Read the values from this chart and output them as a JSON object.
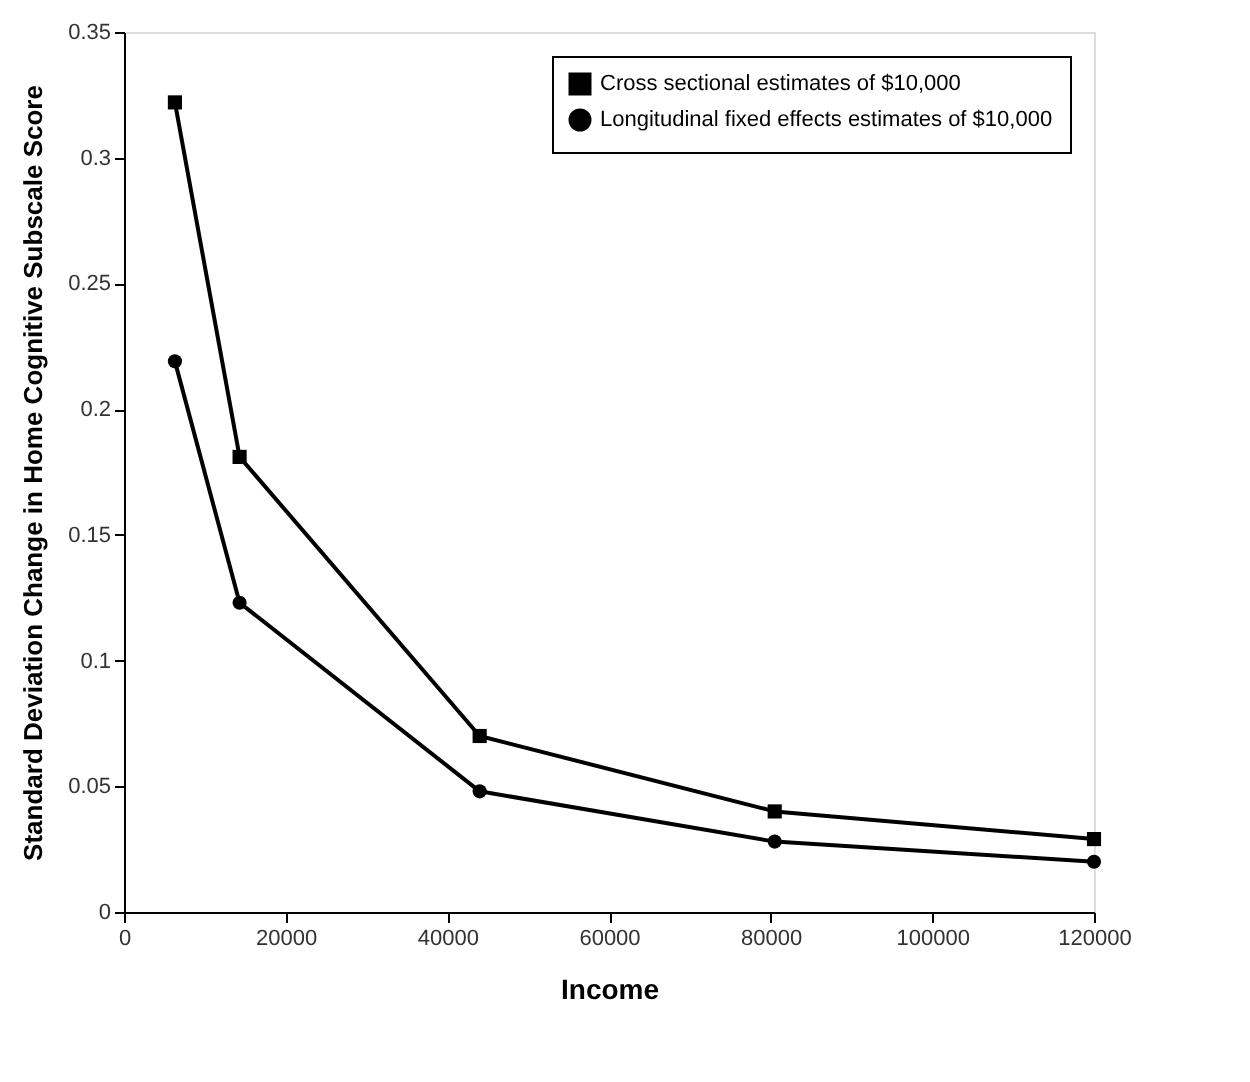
{
  "chart_data": {
    "type": "line",
    "xlabel": "Income",
    "ylabel": "Standard Deviation Change in Home Cognitive Subscale Score",
    "x": [
      6300,
      14300,
      44000,
      80500,
      120000
    ],
    "series": [
      {
        "name": "Cross sectional estimates of $10,000",
        "color": "#000000",
        "marker": "square",
        "values": [
          0.322,
          0.181,
          0.07,
          0.04,
          0.029
        ]
      },
      {
        "name": "Longitudinal fixed effects estimates of $10,000",
        "color": "#000000",
        "marker": "circle",
        "values": [
          0.219,
          0.123,
          0.048,
          0.028,
          0.02
        ]
      }
    ],
    "xlim": [
      0,
      120000
    ],
    "xticks": [
      0,
      20000,
      40000,
      60000,
      80000,
      100000,
      120000
    ],
    "ylim": [
      0,
      0.35
    ],
    "yticks": [
      0,
      0.05,
      0.1,
      0.15,
      0.2,
      0.25,
      0.3,
      0.35
    ],
    "grid": false,
    "legend": "top right",
    "line_style": "solid"
  }
}
